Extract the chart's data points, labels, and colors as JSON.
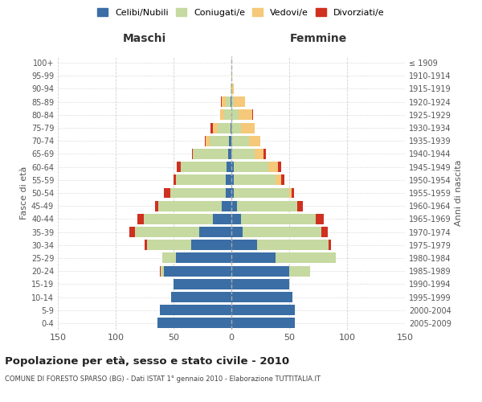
{
  "age_groups": [
    "0-4",
    "5-9",
    "10-14",
    "15-19",
    "20-24",
    "25-29",
    "30-34",
    "35-39",
    "40-44",
    "45-49",
    "50-54",
    "55-59",
    "60-64",
    "65-69",
    "70-74",
    "75-79",
    "80-84",
    "85-89",
    "90-94",
    "95-99",
    "100+"
  ],
  "birth_years": [
    "2005-2009",
    "2000-2004",
    "1995-1999",
    "1990-1994",
    "1985-1989",
    "1980-1984",
    "1975-1979",
    "1970-1974",
    "1965-1969",
    "1960-1964",
    "1955-1959",
    "1950-1954",
    "1945-1949",
    "1940-1944",
    "1935-1939",
    "1930-1934",
    "1925-1929",
    "1920-1924",
    "1915-1919",
    "1910-1914",
    "≤ 1909"
  ],
  "maschi": {
    "celibe": [
      64,
      62,
      52,
      50,
      58,
      48,
      35,
      28,
      16,
      8,
      5,
      5,
      4,
      3,
      2,
      1,
      0,
      1,
      0,
      0,
      0
    ],
    "coniugato": [
      0,
      0,
      0,
      0,
      3,
      12,
      38,
      55,
      60,
      55,
      48,
      43,
      40,
      30,
      17,
      11,
      6,
      4,
      1,
      0,
      0
    ],
    "vedovo": [
      0,
      0,
      0,
      0,
      0,
      0,
      0,
      0,
      0,
      0,
      0,
      0,
      0,
      0,
      3,
      4,
      4,
      3,
      0,
      0,
      0
    ],
    "divorziato": [
      0,
      0,
      0,
      0,
      1,
      0,
      2,
      5,
      5,
      3,
      5,
      2,
      3,
      1,
      1,
      2,
      0,
      1,
      0,
      0,
      0
    ]
  },
  "femmine": {
    "nubile": [
      55,
      55,
      53,
      50,
      50,
      38,
      22,
      10,
      8,
      5,
      2,
      2,
      2,
      0,
      0,
      0,
      0,
      0,
      0,
      0,
      0
    ],
    "coniugata": [
      0,
      0,
      0,
      0,
      18,
      52,
      62,
      68,
      65,
      52,
      48,
      36,
      30,
      20,
      15,
      8,
      6,
      2,
      0,
      0,
      0
    ],
    "vedova": [
      0,
      0,
      0,
      0,
      0,
      0,
      0,
      0,
      0,
      0,
      2,
      5,
      8,
      8,
      10,
      12,
      12,
      10,
      2,
      1,
      0
    ],
    "divorziata": [
      0,
      0,
      0,
      0,
      0,
      0,
      2,
      5,
      7,
      5,
      2,
      3,
      3,
      2,
      0,
      0,
      1,
      0,
      0,
      0,
      0
    ]
  },
  "colors": {
    "celibe": "#3a6ea5",
    "coniugato": "#c5d9a0",
    "vedovo": "#f5c87a",
    "divorziato": "#d03020"
  },
  "title": "Popolazione per età, sesso e stato civile - 2010",
  "subtitle": "COMUNE DI FORESTO SPARSO (BG) - Dati ISTAT 1° gennaio 2010 - Elaborazione TUTTITALIA.IT",
  "xlabel_left": "Maschi",
  "xlabel_right": "Femmine",
  "ylabel_left": "Fasce di età",
  "ylabel_right": "Anni di nascita",
  "xlim": 150,
  "legend_labels": [
    "Celibi/Nubili",
    "Coniugati/e",
    "Vedovi/e",
    "Divorziati/e"
  ],
  "background_color": "#ffffff",
  "grid_color": "#cccccc"
}
